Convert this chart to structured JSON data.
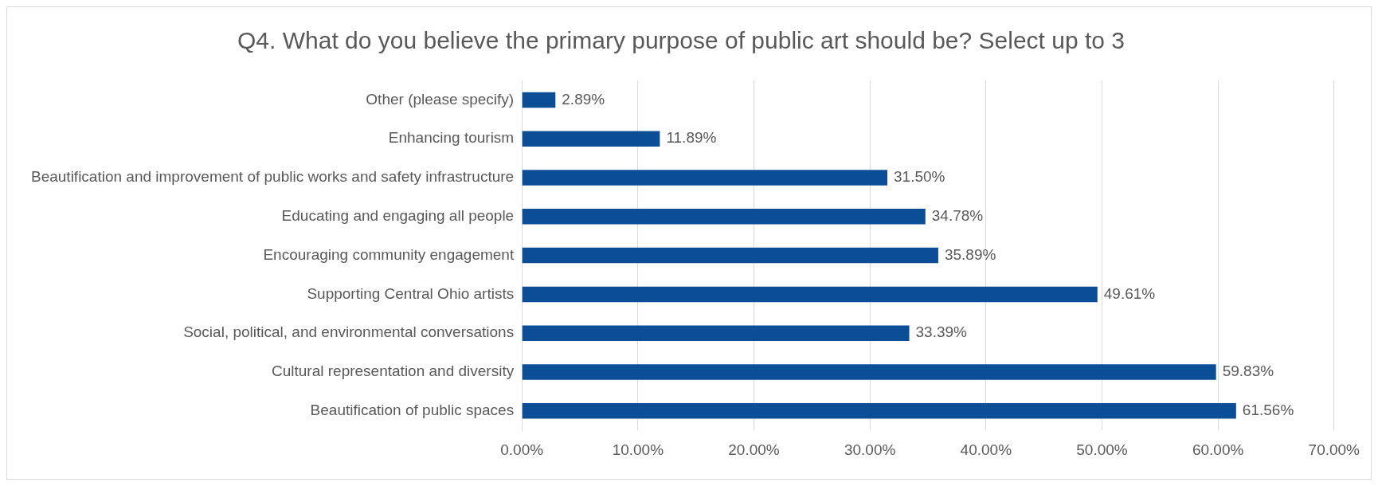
{
  "chart_data": {
    "type": "bar",
    "orientation": "horizontal",
    "title": "Q4. What do you believe the primary purpose of public art should be? Select up to 3",
    "categories": [
      "Other (please specify)",
      "Enhancing tourism",
      "Beautification and improvement of public works and safety infrastructure",
      "Educating and engaging all people",
      "Encouraging community engagement",
      "Supporting Central Ohio artists",
      "Social, political, and environmental conversations",
      "Cultural representation and diversity",
      "Beautification of public spaces"
    ],
    "values": [
      2.89,
      11.89,
      31.5,
      34.78,
      35.89,
      49.61,
      33.39,
      59.83,
      61.56
    ],
    "value_labels": [
      "2.89%",
      "11.89%",
      "31.50%",
      "34.78%",
      "35.89%",
      "49.61%",
      "33.39%",
      "59.83%",
      "61.56%"
    ],
    "color": "#0b4e96",
    "xlim": [
      0,
      70
    ],
    "xticks": [
      {
        "value": 0,
        "label": "0.00%"
      },
      {
        "value": 10,
        "label": "10.00%"
      },
      {
        "value": 20,
        "label": "20.00%"
      },
      {
        "value": 30,
        "label": "30.00%"
      },
      {
        "value": 40,
        "label": "40.00%"
      },
      {
        "value": 50,
        "label": "50.00%"
      },
      {
        "value": 60,
        "label": "60.00%"
      },
      {
        "value": 70,
        "label": "70.00%"
      }
    ],
    "grid": "x",
    "legend": false
  }
}
